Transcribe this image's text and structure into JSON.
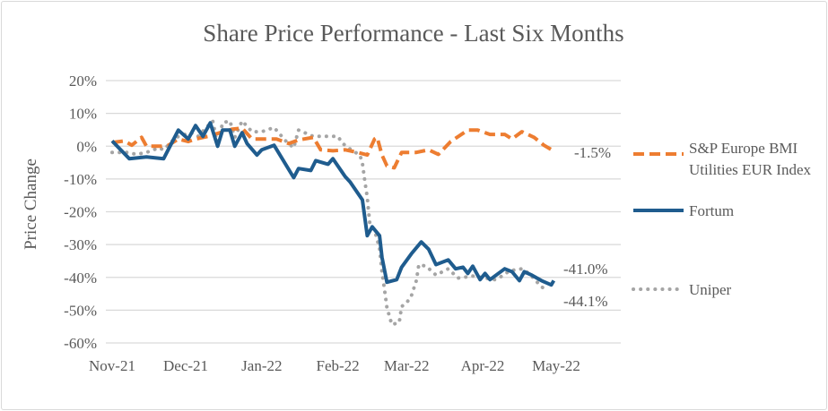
{
  "chart_data": {
    "type": "line",
    "title": "Share Price Performance - Last Six Months",
    "xlabel": "",
    "ylabel": "Price Change",
    "xlim": [
      "2021-11-01",
      "2022-05-01"
    ],
    "ylim": [
      -60,
      20
    ],
    "y_ticks": [
      20,
      10,
      0,
      -10,
      -20,
      -30,
      -40,
      -50,
      -60
    ],
    "y_tick_labels": [
      "20%",
      "10%",
      "0%",
      "-10%",
      "-20%",
      "-30%",
      "-40%",
      "-50%",
      "-60%"
    ],
    "x_ticks": [
      "2021-11-01",
      "2021-12-01",
      "2022-01-01",
      "2022-02-01",
      "2022-03-01",
      "2022-04-01",
      "2022-05-01"
    ],
    "x_tick_labels": [
      "Nov-21",
      "Dec-21",
      "Jan-22",
      "Feb-22",
      "Mar-22",
      "Apr-22",
      "May-22"
    ],
    "grid": "horizontal",
    "legend_placement": "right",
    "series": [
      {
        "name": "S&P Europe BMI Utilities EUR Index",
        "legend_lines": [
          "S&P Europe BMI",
          "Utilities EUR Index"
        ],
        "color": "#ed7d31",
        "style": "dashed",
        "end_label": "-1.5%",
        "points": [
          [
            "2021-11-01",
            1.1
          ],
          [
            "2021-11-06",
            1.6
          ],
          [
            "2021-11-09",
            0.3
          ],
          [
            "2021-11-13",
            2.7
          ],
          [
            "2021-11-15",
            0
          ],
          [
            "2021-11-21",
            0
          ],
          [
            "2021-11-24",
            0.3
          ],
          [
            "2021-11-28",
            2.2
          ],
          [
            "2021-12-02",
            1.4
          ],
          [
            "2021-12-05",
            2.2
          ],
          [
            "2021-12-10",
            3.0
          ],
          [
            "2021-12-15",
            4.1
          ],
          [
            "2021-12-20",
            5.2
          ],
          [
            "2021-12-24",
            5.5
          ],
          [
            "2021-12-28",
            2.2
          ],
          [
            "2022-01-02",
            2.2
          ],
          [
            "2022-01-07",
            2.2
          ],
          [
            "2022-01-12",
            0.8
          ],
          [
            "2022-01-16",
            1.9
          ],
          [
            "2022-01-22",
            2.7
          ],
          [
            "2022-01-25",
            -1.1
          ],
          [
            "2022-01-30",
            -1.4
          ],
          [
            "2022-02-04",
            -1.1
          ],
          [
            "2022-02-09",
            -1.9
          ],
          [
            "2022-02-13",
            -2.7
          ],
          [
            "2022-02-16",
            2.2
          ],
          [
            "2022-02-17",
            2.7
          ],
          [
            "2022-02-19",
            -2.7
          ],
          [
            "2022-02-21",
            -6.0
          ],
          [
            "2022-02-24",
            -6.6
          ],
          [
            "2022-02-27",
            -1.9
          ],
          [
            "2022-03-05",
            -1.9
          ],
          [
            "2022-03-10",
            -1.1
          ],
          [
            "2022-03-14",
            -2.5
          ],
          [
            "2022-03-19",
            1.4
          ],
          [
            "2022-03-26",
            4.9
          ],
          [
            "2022-03-30",
            4.9
          ],
          [
            "2022-04-04",
            3.6
          ],
          [
            "2022-04-10",
            3.6
          ],
          [
            "2022-04-13",
            2.2
          ],
          [
            "2022-04-17",
            4.4
          ],
          [
            "2022-04-22",
            2.7
          ],
          [
            "2022-04-26",
            0.3
          ],
          [
            "2022-04-30",
            -1.5
          ]
        ]
      },
      {
        "name": "Fortum",
        "legend_lines": [
          "Fortum"
        ],
        "color": "#1f5c8e",
        "style": "solid",
        "end_label": "-41.0%",
        "points": [
          [
            "2021-11-01",
            1.6
          ],
          [
            "2021-11-08",
            -3.8
          ],
          [
            "2021-11-15",
            -3.3
          ],
          [
            "2021-11-22",
            -3.8
          ],
          [
            "2021-11-28",
            4.9
          ],
          [
            "2021-12-02",
            2.2
          ],
          [
            "2021-12-05",
            6.3
          ],
          [
            "2021-12-08",
            3.0
          ],
          [
            "2021-12-11",
            7.1
          ],
          [
            "2021-12-14",
            0
          ],
          [
            "2021-12-16",
            4.9
          ],
          [
            "2021-12-19",
            4.9
          ],
          [
            "2021-12-21",
            0
          ],
          [
            "2021-12-24",
            4.1
          ],
          [
            "2021-12-26",
            0.8
          ],
          [
            "2021-12-30",
            -2.7
          ],
          [
            "2022-01-01",
            -1.1
          ],
          [
            "2022-01-06",
            0.3
          ],
          [
            "2022-01-14",
            -9.6
          ],
          [
            "2022-01-16",
            -6.8
          ],
          [
            "2022-01-21",
            -7.4
          ],
          [
            "2022-01-23",
            -4.4
          ],
          [
            "2022-01-28",
            -5.5
          ],
          [
            "2022-01-30",
            -3.8
          ],
          [
            "2022-02-04",
            -9.3
          ],
          [
            "2022-02-06",
            -10.9
          ],
          [
            "2022-02-11",
            -16.4
          ],
          [
            "2022-02-13",
            -27.3
          ],
          [
            "2022-02-15",
            -24.6
          ],
          [
            "2022-02-18",
            -27.3
          ],
          [
            "2022-02-19",
            -33.9
          ],
          [
            "2022-02-21",
            -41.5
          ],
          [
            "2022-02-25",
            -40.7
          ],
          [
            "2022-02-27",
            -36.9
          ],
          [
            "2022-03-03",
            -32.8
          ],
          [
            "2022-03-07",
            -29.2
          ],
          [
            "2022-03-10",
            -31.4
          ],
          [
            "2022-03-13",
            -36.1
          ],
          [
            "2022-03-18",
            -34.7
          ],
          [
            "2022-03-21",
            -37.4
          ],
          [
            "2022-03-24",
            -36.9
          ],
          [
            "2022-03-26",
            -38.8
          ],
          [
            "2022-03-28",
            -36.6
          ],
          [
            "2022-03-31",
            -40.7
          ],
          [
            "2022-04-02",
            -38.8
          ],
          [
            "2022-04-04",
            -40.7
          ],
          [
            "2022-04-10",
            -37.4
          ],
          [
            "2022-04-13",
            -38.3
          ],
          [
            "2022-04-16",
            -41.0
          ],
          [
            "2022-04-18",
            -38.3
          ],
          [
            "2022-04-21",
            -39.3
          ],
          [
            "2022-04-25",
            -41.0
          ],
          [
            "2022-04-29",
            -42.3
          ],
          [
            "2022-04-30",
            -41.0
          ]
        ]
      },
      {
        "name": "Uniper",
        "legend_lines": [
          "Uniper"
        ],
        "color": "#a5a5a5",
        "style": "dotted",
        "end_label": "-44.1%",
        "points": [
          [
            "2021-11-01",
            -1.9
          ],
          [
            "2021-11-07",
            -1.9
          ],
          [
            "2021-11-11",
            -2.5
          ],
          [
            "2021-11-15",
            -1.9
          ],
          [
            "2021-11-20",
            -0.5
          ],
          [
            "2021-11-22",
            -1.1
          ],
          [
            "2021-11-27",
            2.7
          ],
          [
            "2021-12-03",
            4.1
          ],
          [
            "2021-12-06",
            3.0
          ],
          [
            "2021-12-12",
            7.7
          ],
          [
            "2021-12-14",
            0.3
          ],
          [
            "2021-12-16",
            7.1
          ],
          [
            "2021-12-19",
            7.7
          ],
          [
            "2021-12-21",
            2.7
          ],
          [
            "2021-12-24",
            7.7
          ],
          [
            "2021-12-28",
            4.4
          ],
          [
            "2022-01-01",
            4.4
          ],
          [
            "2022-01-06",
            5.7
          ],
          [
            "2022-01-11",
            1.4
          ],
          [
            "2022-01-14",
            -0.5
          ],
          [
            "2022-01-16",
            4.9
          ],
          [
            "2022-01-22",
            3.0
          ],
          [
            "2022-01-28",
            3.0
          ],
          [
            "2022-02-01",
            3.0
          ],
          [
            "2022-02-03",
            0.8
          ],
          [
            "2022-02-07",
            -1.4
          ],
          [
            "2022-02-10",
            -2.7
          ],
          [
            "2022-02-11",
            -5.2
          ],
          [
            "2022-02-12",
            -10.7
          ],
          [
            "2022-02-13",
            -15.6
          ],
          [
            "2022-02-14",
            -23.5
          ],
          [
            "2022-02-16",
            -25.7
          ],
          [
            "2022-02-18",
            -31.1
          ],
          [
            "2022-02-19",
            -38.3
          ],
          [
            "2022-02-20",
            -43.7
          ],
          [
            "2022-02-21",
            -49.2
          ],
          [
            "2022-02-23",
            -54.4
          ],
          [
            "2022-02-26",
            -53.8
          ],
          [
            "2022-02-27",
            -48.9
          ],
          [
            "2022-03-01",
            -47.8
          ],
          [
            "2022-03-03",
            -45.6
          ],
          [
            "2022-03-05",
            -41.0
          ],
          [
            "2022-03-06",
            -36.1
          ],
          [
            "2022-03-09",
            -36.6
          ],
          [
            "2022-03-13",
            -39.3
          ],
          [
            "2022-03-18",
            -37.4
          ],
          [
            "2022-03-22",
            -40.2
          ],
          [
            "2022-03-28",
            -39.6
          ],
          [
            "2022-04-02",
            -40.2
          ],
          [
            "2022-04-06",
            -40.7
          ],
          [
            "2022-04-09",
            -39.6
          ],
          [
            "2022-04-12",
            -38.0
          ],
          [
            "2022-04-17",
            -37.4
          ],
          [
            "2022-04-20",
            -38.8
          ],
          [
            "2022-04-25",
            -42.9
          ],
          [
            "2022-04-28",
            -44.1
          ]
        ]
      }
    ]
  }
}
